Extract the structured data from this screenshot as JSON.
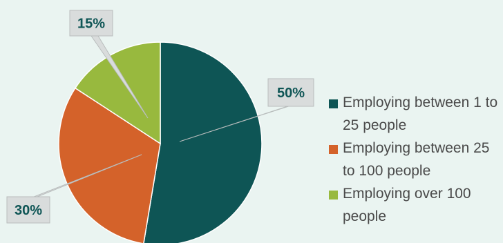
{
  "chart_data": {
    "type": "pie",
    "slices": [
      {
        "label": "Employing between 1 to 25 people",
        "value": 50,
        "data_label": "50%",
        "color": "#0e5555"
      },
      {
        "label": "Employing between 25 to 100 people",
        "value": 30,
        "data_label": "30%",
        "color": "#d4622a"
      },
      {
        "label": "Employing over 100 people",
        "value": 15,
        "data_label": "15%",
        "color": "#98b93e"
      }
    ],
    "legend_position": "right",
    "label_style": "callout"
  },
  "colors": {
    "background": "#eaf4f1",
    "callout_fill": "#d9dcdc",
    "callout_border": "#b9bdbd",
    "label_text": "#0e5555",
    "legend_text": "#4a4a4a"
  }
}
